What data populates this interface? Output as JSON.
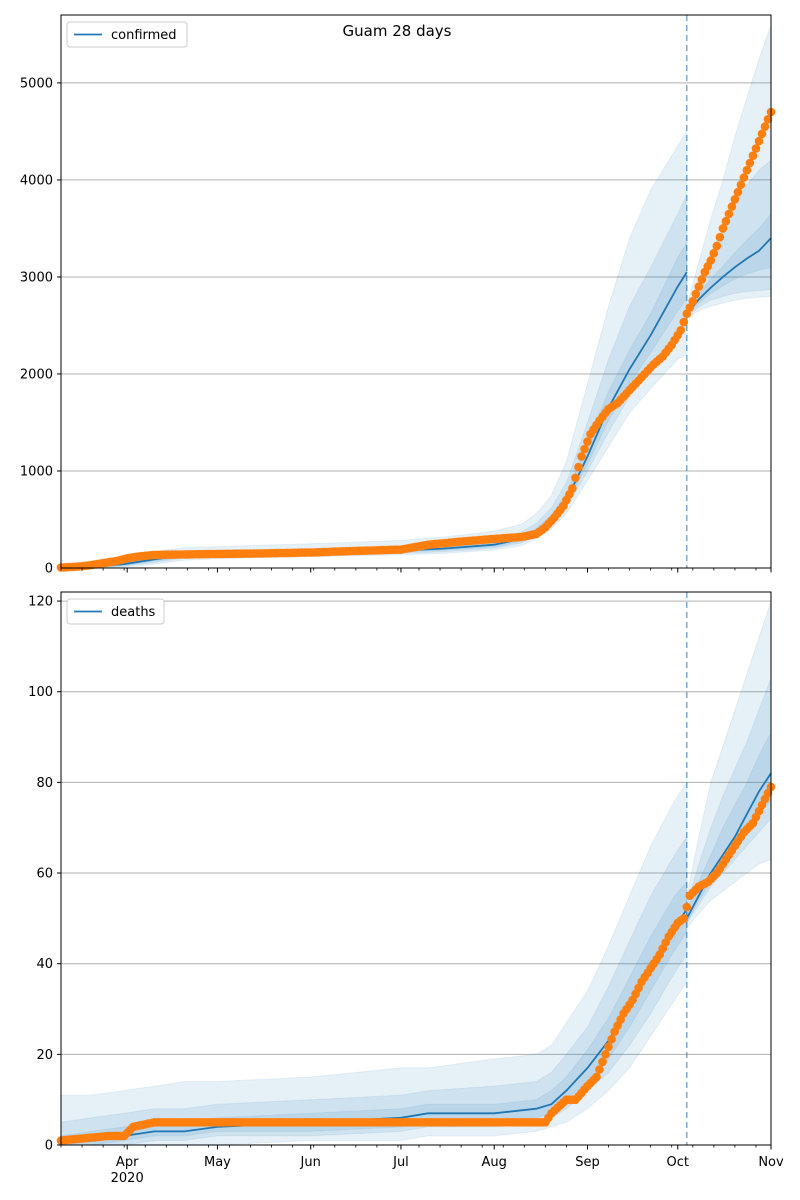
{
  "title": "Guam 28 days",
  "colors": {
    "model": "#1f77b4",
    "observed": "#ff7f0e",
    "band": "#1f77b4",
    "grid": "#b0b0b0"
  },
  "x_axis": {
    "start": "2020-03-10",
    "end": "2020-11-01",
    "ticks": [
      {
        "date": "2020-04-01",
        "label": "Apr"
      },
      {
        "date": "2020-05-01",
        "label": "May"
      },
      {
        "date": "2020-06-01",
        "label": "Jun"
      },
      {
        "date": "2020-07-01",
        "label": "Jul"
      },
      {
        "date": "2020-08-01",
        "label": "Aug"
      },
      {
        "date": "2020-09-01",
        "label": "Sep"
      },
      {
        "date": "2020-10-01",
        "label": "Oct"
      },
      {
        "date": "2020-11-01",
        "label": "Nov"
      }
    ],
    "year_label": "2020",
    "forecast_start": "2020-10-04"
  },
  "chart_data": [
    {
      "type": "line",
      "legend": "confirmed",
      "legend_position": "top-left",
      "grid": "horizontal",
      "ylim": [
        0,
        5700
      ],
      "yticks": [
        0,
        1000,
        2000,
        3000,
        4000,
        5000
      ],
      "fit": {
        "x": [
          "2020-03-10",
          "2020-03-20",
          "2020-03-31",
          "2020-04-10",
          "2020-04-20",
          "2020-05-01",
          "2020-05-15",
          "2020-06-01",
          "2020-06-15",
          "2020-07-01",
          "2020-07-15",
          "2020-08-01",
          "2020-08-10",
          "2020-08-15",
          "2020-08-20",
          "2020-08-25",
          "2020-09-01",
          "2020-09-08",
          "2020-09-15",
          "2020-09-22",
          "2020-10-01",
          "2020-10-04"
        ],
        "y": [
          0,
          10,
          40,
          90,
          130,
          140,
          150,
          160,
          170,
          180,
          200,
          240,
          300,
          380,
          500,
          700,
          1150,
          1650,
          2050,
          2400,
          2900,
          3050
        ],
        "bands": [
          {
            "lo": [
              0,
              0,
              10,
              40,
              80,
              95,
              105,
              115,
              125,
              135,
              150,
              185,
              230,
              300,
              400,
              560,
              900,
              1250,
              1600,
              1850,
              2150,
              2200
            ],
            "hi": [
              10,
              60,
              120,
              170,
              210,
              220,
              235,
              250,
              265,
              285,
              320,
              380,
              450,
              560,
              750,
              1100,
              1900,
              2700,
              3400,
              3900,
              4350,
              4500
            ]
          },
          {
            "lo": [
              0,
              2,
              20,
              60,
              100,
              112,
              122,
              132,
              142,
              152,
              168,
              205,
              258,
              330,
              440,
              620,
              1000,
              1400,
              1770,
              2050,
              2400,
              2500
            ],
            "hi": [
              5,
              35,
              80,
              130,
              170,
              178,
              190,
              200,
              212,
              228,
              255,
              305,
              370,
              460,
              620,
              880,
              1500,
              2150,
              2700,
              3100,
              3650,
              3850
            ]
          },
          {
            "lo": [
              0,
              5,
              28,
              72,
              112,
              123,
              134,
              144,
              154,
              165,
              182,
              220,
              276,
              352,
              468,
              660,
              1070,
              1520,
              1900,
              2220,
              2650,
              2780
            ],
            "hi": [
              2,
              20,
              56,
              110,
              150,
              158,
              168,
              178,
              188,
              198,
              222,
              265,
              326,
              410,
              545,
              770,
              1280,
              1820,
              2250,
              2620,
              3200,
              3350
            ]
          }
        ]
      },
      "forecast": {
        "x": [
          "2020-10-04",
          "2020-10-08",
          "2020-10-12",
          "2020-10-16",
          "2020-10-20",
          "2020-10-24",
          "2020-10-28",
          "2020-11-01"
        ],
        "y": [
          2620,
          2770,
          2890,
          3000,
          3100,
          3190,
          3270,
          3400
        ],
        "bands": [
          {
            "lo": [
              2580,
              2650,
              2700,
              2730,
              2760,
              2780,
              2790,
              2800
            ],
            "hi": [
              2700,
              3150,
              3600,
              4000,
              4450,
              4850,
              5250,
              5600
            ]
          },
          {
            "lo": [
              2600,
              2690,
              2760,
              2800,
              2830,
              2850,
              2860,
              2870
            ],
            "hi": [
              2650,
              2950,
              3250,
              3500,
              3750,
              3950,
              4100,
              4200
            ]
          },
          {
            "lo": [
              2610,
              2730,
              2830,
              2910,
              2980,
              3030,
              3070,
              3100
            ],
            "hi": [
              2640,
              2820,
              2980,
              3110,
              3250,
              3380,
              3500,
              3650
            ]
          }
        ]
      },
      "observed": {
        "x": [
          "2020-03-10",
          "2020-03-16",
          "2020-03-20",
          "2020-03-25",
          "2020-03-28",
          "2020-04-01",
          "2020-04-05",
          "2020-04-10",
          "2020-04-20",
          "2020-05-01",
          "2020-05-15",
          "2020-06-01",
          "2020-06-15",
          "2020-07-01",
          "2020-07-10",
          "2020-07-20",
          "2020-08-01",
          "2020-08-10",
          "2020-08-15",
          "2020-08-18",
          "2020-08-21",
          "2020-08-24",
          "2020-08-27",
          "2020-08-30",
          "2020-09-02",
          "2020-09-05",
          "2020-09-08",
          "2020-09-11",
          "2020-09-14",
          "2020-09-17",
          "2020-09-20",
          "2020-09-23",
          "2020-09-26",
          "2020-09-29",
          "2020-10-02",
          "2020-10-04",
          "2020-10-06",
          "2020-10-08",
          "2020-10-10",
          "2020-10-12",
          "2020-10-14",
          "2020-10-16",
          "2020-10-18",
          "2020-10-20",
          "2020-10-22",
          "2020-10-24",
          "2020-10-26",
          "2020-10-28",
          "2020-10-30",
          "2020-11-01"
        ],
        "y": [
          5,
          15,
          30,
          55,
          70,
          100,
          120,
          135,
          140,
          145,
          150,
          160,
          175,
          190,
          240,
          270,
          300,
          320,
          350,
          420,
          520,
          640,
          820,
          1150,
          1380,
          1520,
          1640,
          1700,
          1800,
          1900,
          2000,
          2100,
          2180,
          2300,
          2450,
          2620,
          2750,
          2900,
          3050,
          3170,
          3320,
          3500,
          3650,
          3800,
          3950,
          4100,
          4250,
          4400,
          4550,
          4700
        ]
      }
    },
    {
      "type": "line",
      "legend": "deaths",
      "legend_position": "top-left",
      "grid": "horizontal",
      "ylim": [
        0,
        122
      ],
      "yticks": [
        0,
        20,
        40,
        60,
        80,
        100,
        120
      ],
      "fit": {
        "x": [
          "2020-03-10",
          "2020-03-20",
          "2020-03-31",
          "2020-04-10",
          "2020-04-20",
          "2020-05-01",
          "2020-06-01",
          "2020-07-01",
          "2020-07-10",
          "2020-08-01",
          "2020-08-15",
          "2020-08-20",
          "2020-08-25",
          "2020-09-01",
          "2020-09-08",
          "2020-09-15",
          "2020-09-22",
          "2020-09-30",
          "2020-10-04"
        ],
        "y": [
          1,
          1,
          2,
          3,
          3,
          4,
          5,
          6,
          7,
          7,
          8,
          9,
          12,
          17,
          23,
          31,
          39,
          48,
          52
        ],
        "bands": [
          {
            "lo": [
              0,
              0,
              0,
              0,
              0,
              0,
              1,
              1,
              2,
              2,
              3,
              4,
              5,
              8,
              12,
              17,
              24,
              32,
              36
            ],
            "hi": [
              11,
              11,
              12,
              13,
              14,
              14,
              15,
              17,
              17,
              19,
              20,
              22,
              27,
              34,
              44,
              55,
              66,
              76,
              80
            ]
          },
          {
            "lo": [
              0,
              0,
              0,
              1,
              1,
              2,
              2,
              3,
              4,
              4,
              5,
              6,
              8,
              12,
              16,
              22,
              29,
              38,
              42
            ],
            "hi": [
              5,
              6,
              7,
              8,
              8,
              9,
              10,
              11,
              12,
              13,
              14,
              16,
              20,
              26,
              35,
              45,
              55,
              64,
              68
            ]
          },
          {
            "lo": [
              0,
              0,
              1,
              2,
              2,
              3,
              3,
              4,
              5,
              5,
              6,
              7,
              10,
              14,
              19,
              26,
              34,
              43,
              47
            ],
            "hi": [
              2,
              3,
              4,
              5,
              5,
              6,
              7,
              8,
              9,
              9,
              10,
              12,
              15,
              21,
              28,
              37,
              46,
              55,
              58
            ]
          }
        ]
      },
      "forecast": {
        "x": [
          "2020-10-04",
          "2020-10-08",
          "2020-10-12",
          "2020-10-16",
          "2020-10-20",
          "2020-10-24",
          "2020-10-28",
          "2020-11-01"
        ],
        "y": [
          50,
          55,
          60,
          64,
          68,
          73,
          78,
          82
        ],
        "bands": [
          {
            "lo": [
              48,
              51,
              54,
              56,
              58,
              60,
              62,
              63
            ],
            "hi": [
              55,
              68,
              80,
              88,
              96,
              104,
              112,
              120
            ]
          },
          {
            "lo": [
              49,
              53,
              57,
              60,
              63,
              66,
              69,
              72
            ],
            "hi": [
              53,
              62,
              70,
              77,
              83,
              89,
              96,
              103
            ]
          },
          {
            "lo": [
              49,
              54,
              58,
              62,
              65,
              69,
              73,
              76
            ],
            "hi": [
              52,
              58,
              64,
              70,
              75,
              80,
              86,
              91
            ]
          }
        ]
      },
      "observed": {
        "x": [
          "2020-03-10",
          "2020-03-26",
          "2020-03-31",
          "2020-04-03",
          "2020-04-10",
          "2020-05-01",
          "2020-06-01",
          "2020-07-01",
          "2020-08-01",
          "2020-08-18",
          "2020-08-20",
          "2020-08-25",
          "2020-08-28",
          "2020-09-01",
          "2020-09-04",
          "2020-09-07",
          "2020-09-10",
          "2020-09-13",
          "2020-09-16",
          "2020-09-19",
          "2020-09-22",
          "2020-09-25",
          "2020-09-28",
          "2020-10-01",
          "2020-10-03",
          "2020-10-05",
          "2020-10-08",
          "2020-10-11",
          "2020-10-14",
          "2020-10-17",
          "2020-10-20",
          "2020-10-23",
          "2020-10-26",
          "2020-10-29",
          "2020-11-01"
        ],
        "y": [
          1,
          2,
          2,
          4,
          5,
          5,
          5,
          5,
          5,
          5,
          7,
          10,
          10,
          13,
          15,
          20,
          25,
          29,
          32,
          36,
          39,
          42,
          46,
          49,
          50,
          55,
          57,
          58,
          60,
          63,
          66,
          69,
          71,
          75,
          79
        ]
      }
    }
  ]
}
